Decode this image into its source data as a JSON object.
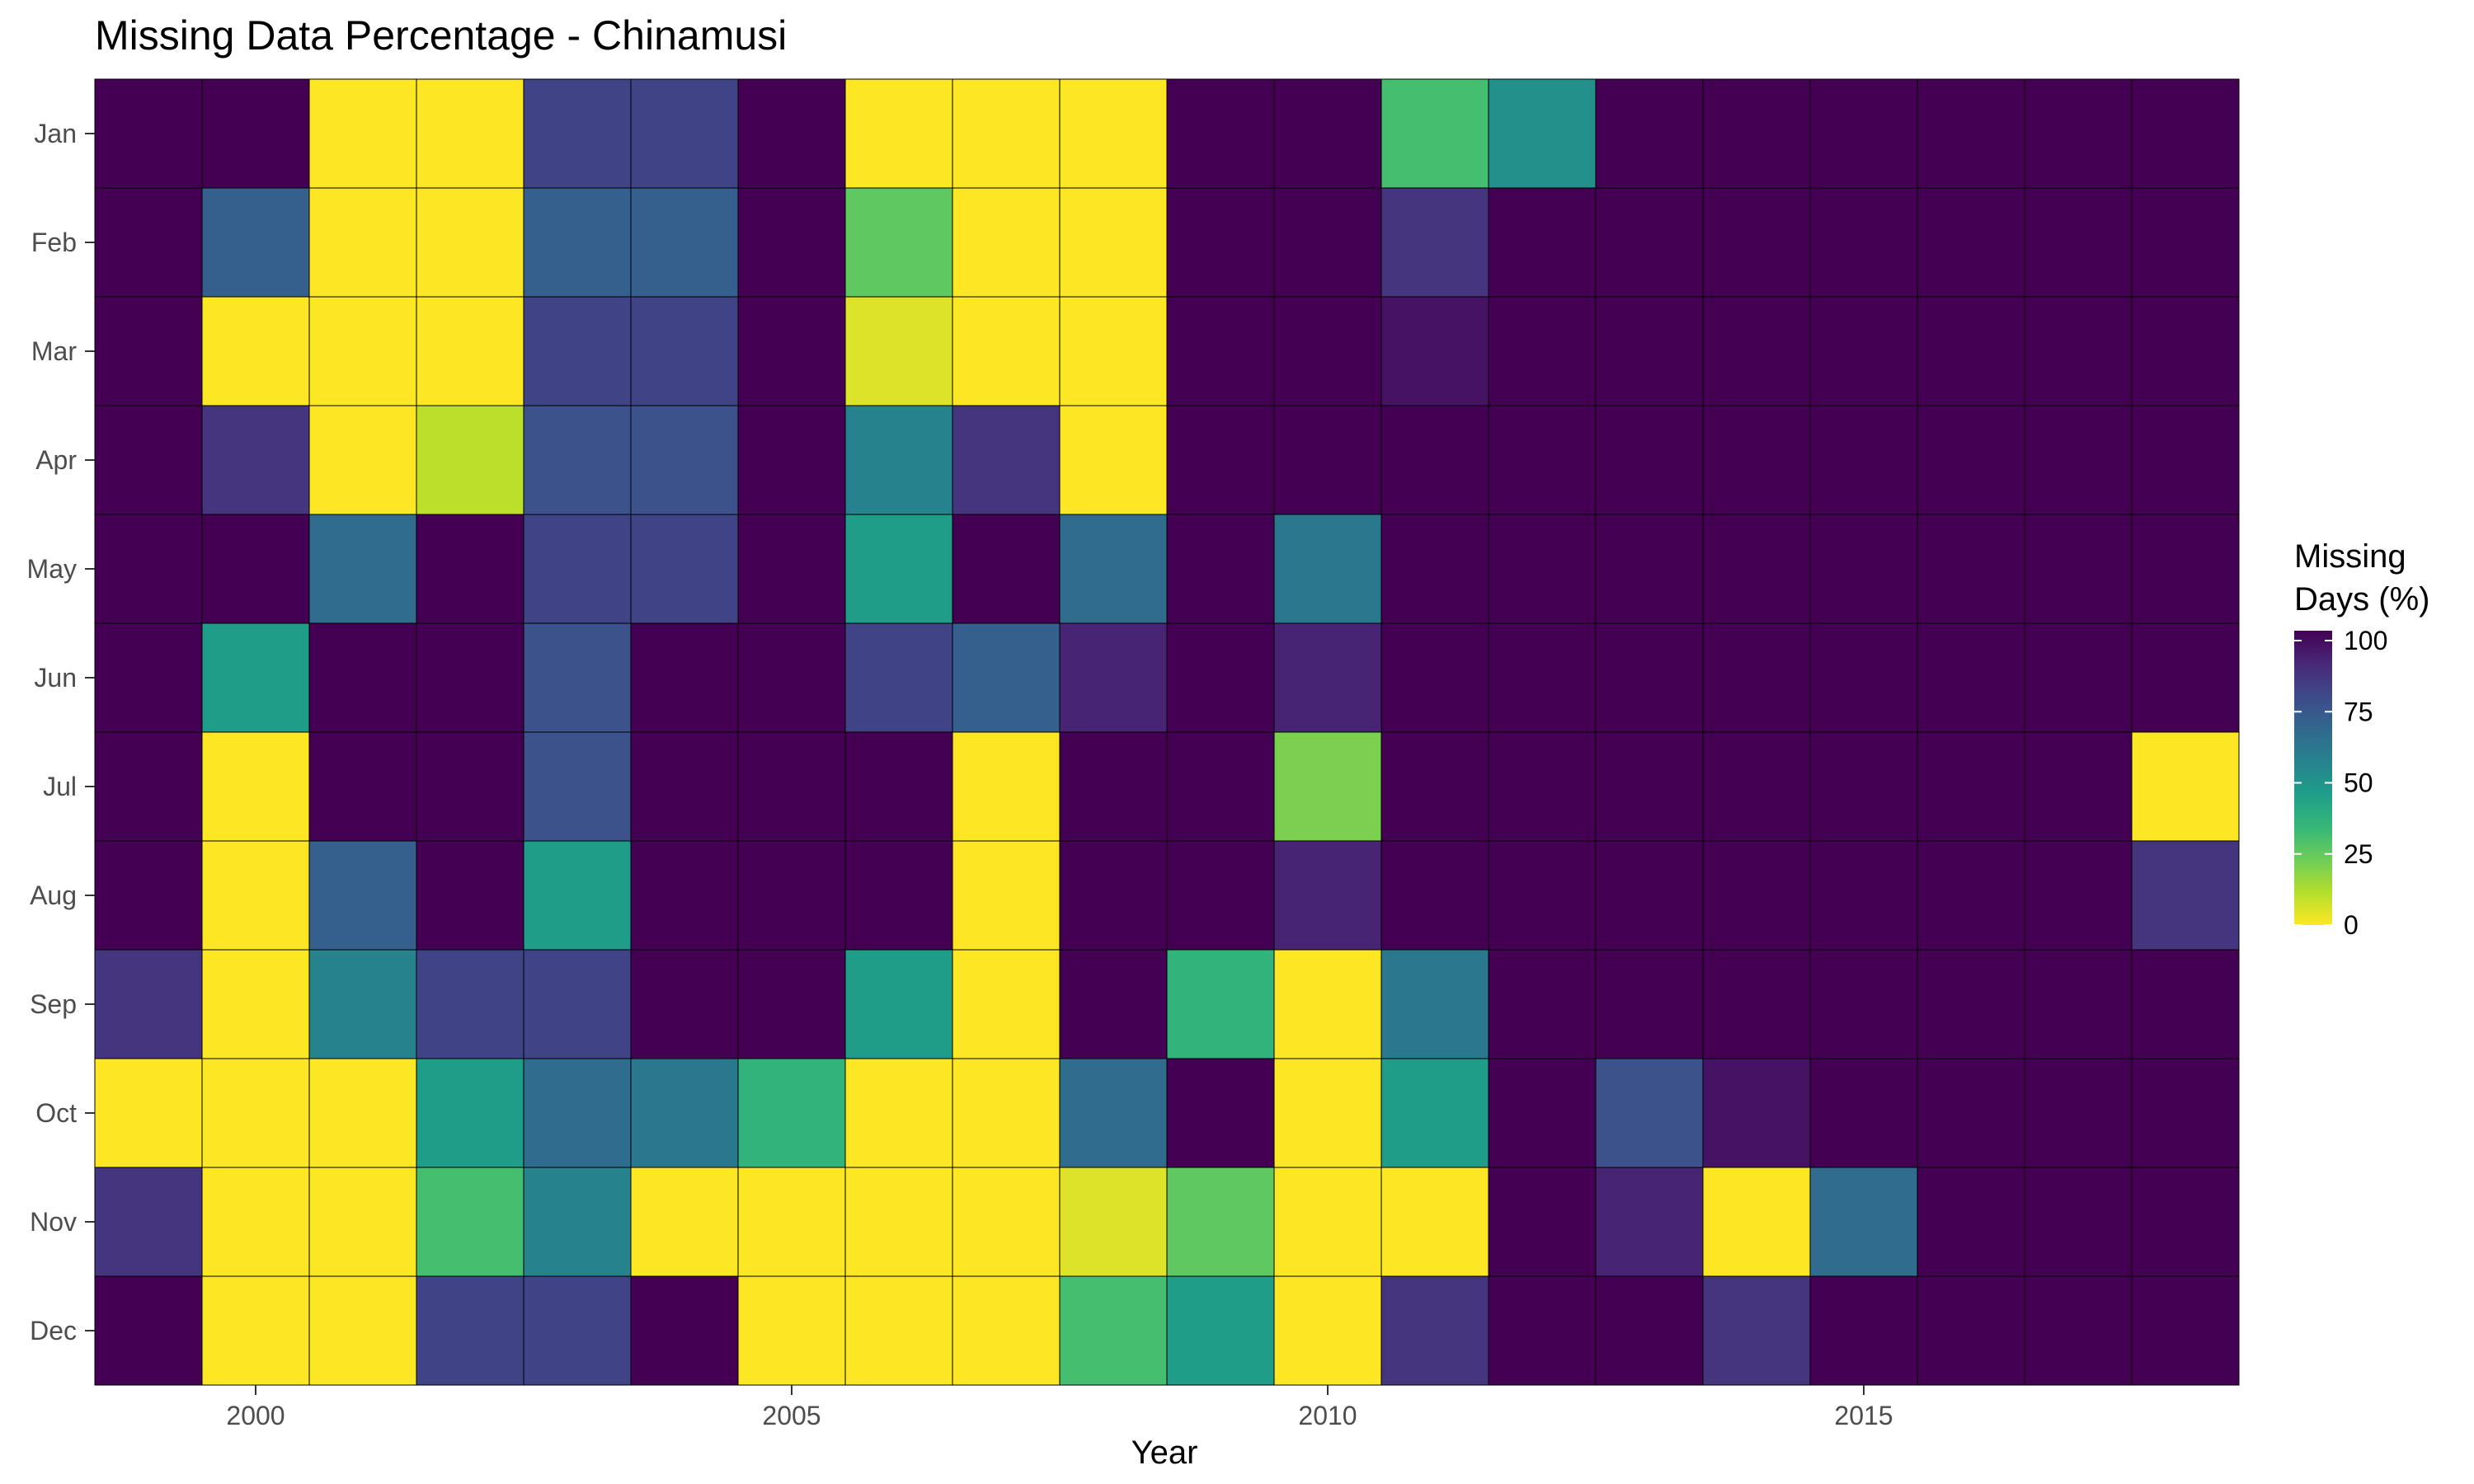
{
  "chart_data": {
    "type": "heatmap",
    "title": "Missing Data Percentage - Chinamusi",
    "xlabel": "Year",
    "ylabel": "",
    "years": [
      1999,
      2000,
      2001,
      2002,
      2003,
      2004,
      2005,
      2006,
      2007,
      2008,
      2009,
      2010,
      2011,
      2012,
      2013,
      2014,
      2015,
      2016,
      2017,
      2018
    ],
    "months": [
      "Jan",
      "Feb",
      "Mar",
      "Apr",
      "May",
      "Jun",
      "Jul",
      "Aug",
      "Sep",
      "Oct",
      "Nov",
      "Dec"
    ],
    "x_ticks": [
      2000,
      2005,
      2010,
      2015
    ],
    "values": [
      [
        100,
        100,
        0,
        0,
        80,
        80,
        100,
        0,
        0,
        0,
        100,
        100,
        30,
        50,
        100,
        100,
        100,
        100,
        100,
        100
      ],
      [
        100,
        70,
        0,
        0,
        70,
        70,
        100,
        25,
        0,
        0,
        100,
        100,
        85,
        100,
        100,
        100,
        100,
        100,
        100,
        100
      ],
      [
        100,
        0,
        0,
        0,
        80,
        80,
        100,
        5,
        0,
        0,
        100,
        100,
        95,
        100,
        100,
        100,
        100,
        100,
        100,
        100
      ],
      [
        100,
        85,
        0,
        10,
        75,
        75,
        100,
        55,
        85,
        0,
        100,
        100,
        100,
        100,
        100,
        100,
        100,
        100,
        100,
        100
      ],
      [
        100,
        100,
        65,
        100,
        80,
        80,
        100,
        45,
        100,
        65,
        100,
        60,
        100,
        100,
        100,
        100,
        100,
        100,
        100,
        100
      ],
      [
        100,
        45,
        100,
        100,
        75,
        100,
        100,
        80,
        70,
        90,
        100,
        90,
        100,
        100,
        100,
        100,
        100,
        100,
        100,
        100
      ],
      [
        100,
        0,
        100,
        100,
        75,
        100,
        100,
        100,
        0,
        100,
        100,
        20,
        100,
        100,
        100,
        100,
        100,
        100,
        100,
        0
      ],
      [
        100,
        0,
        70,
        100,
        45,
        100,
        100,
        100,
        0,
        100,
        100,
        90,
        100,
        100,
        100,
        100,
        100,
        100,
        100,
        85
      ],
      [
        85,
        0,
        55,
        80,
        80,
        100,
        100,
        45,
        0,
        100,
        35,
        0,
        60,
        100,
        100,
        100,
        100,
        100,
        100,
        100
      ],
      [
        0,
        0,
        0,
        45,
        65,
        60,
        35,
        0,
        0,
        65,
        100,
        0,
        45,
        100,
        75,
        95,
        100,
        100,
        100,
        100
      ],
      [
        85,
        0,
        0,
        30,
        55,
        0,
        0,
        0,
        0,
        5,
        25,
        0,
        0,
        100,
        90,
        0,
        65,
        100,
        100,
        100
      ],
      [
        100,
        0,
        0,
        80,
        80,
        100,
        0,
        0,
        0,
        30,
        45,
        0,
        85,
        100,
        100,
        85,
        100,
        100,
        100,
        100
      ]
    ],
    "color_scale": "viridis (reversed)",
    "color_stops": [
      "#FDE725",
      "#B4DE2C",
      "#6DCD59",
      "#35B779",
      "#1F9E89",
      "#26828E",
      "#31688E",
      "#3E4A89",
      "#482878",
      "#440154"
    ],
    "legend": {
      "title_lines": [
        "Missing",
        "Days (%)"
      ],
      "ticks": [
        100,
        75,
        50,
        25,
        0
      ],
      "position": "right"
    },
    "grid": false
  }
}
